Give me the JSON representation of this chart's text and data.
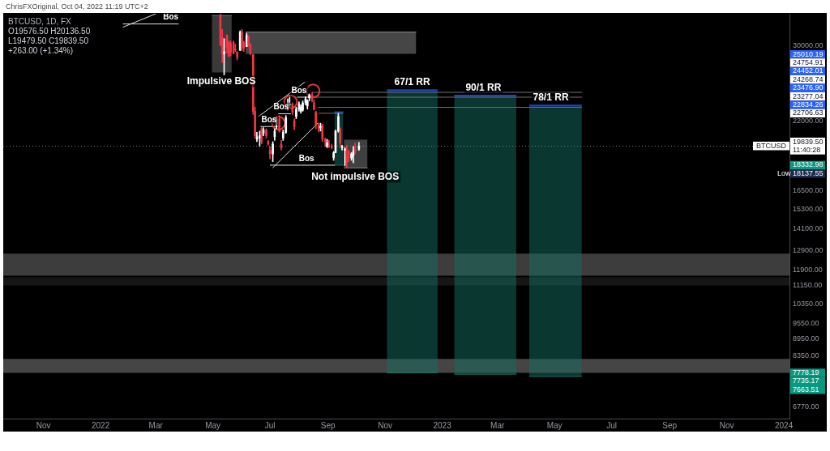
{
  "chart_data": {
    "type": "candlestick",
    "title": "BTCUSD, 1D, FX",
    "subtitle": "O19576.50 H20136.50 L19479.50 C19839.50 +263.00 (+1.34%)",
    "x": [
      "2022-05-09",
      "2022-05-11",
      "2022-05-13",
      "2022-05-16",
      "2022-05-18",
      "2022-05-20",
      "2022-05-23",
      "2022-05-25",
      "2022-05-27",
      "2022-05-30",
      "2022-06-01",
      "2022-06-03",
      "2022-06-06",
      "2022-06-08",
      "2022-06-10",
      "2022-06-13",
      "2022-06-15",
      "2022-06-17",
      "2022-06-20",
      "2022-06-22",
      "2022-06-24",
      "2022-06-27",
      "2022-06-29",
      "2022-07-01",
      "2022-07-04",
      "2022-07-06",
      "2022-07-08",
      "2022-07-11",
      "2022-07-13",
      "2022-07-15",
      "2022-07-18",
      "2022-07-20",
      "2022-07-22",
      "2022-07-25",
      "2022-07-27",
      "2022-07-29",
      "2022-08-01",
      "2022-08-03",
      "2022-08-05",
      "2022-08-08",
      "2022-08-10",
      "2022-08-12",
      "2022-08-15",
      "2022-08-17",
      "2022-08-19",
      "2022-08-22",
      "2022-08-24",
      "2022-08-26",
      "2022-08-29",
      "2022-08-31",
      "2022-09-02",
      "2022-09-05",
      "2022-09-07",
      "2022-09-09",
      "2022-09-12",
      "2022-09-14",
      "2022-09-16",
      "2022-09-19",
      "2022-09-21",
      "2022-09-23",
      "2022-09-26",
      "2022-09-28",
      "2022-09-30",
      "2022-10-04"
    ],
    "ohlc": [
      [
        34000,
        34200,
        30000,
        30100
      ],
      [
        31000,
        32100,
        28000,
        29000
      ],
      [
        29000,
        30900,
        26600,
        29300
      ],
      [
        31300,
        31400,
        29100,
        29800
      ],
      [
        30400,
        30600,
        28700,
        28700
      ],
      [
        30300,
        30600,
        28800,
        29200
      ],
      [
        30400,
        30600,
        29000,
        29100
      ],
      [
        29600,
        30200,
        29300,
        29500
      ],
      [
        29200,
        29300,
        28300,
        28600
      ],
      [
        29500,
        31900,
        29400,
        31700
      ],
      [
        31800,
        32100,
        29400,
        29800
      ],
      [
        30400,
        30600,
        29300,
        29700
      ],
      [
        29900,
        31600,
        29900,
        31300
      ],
      [
        31100,
        31300,
        29900,
        30200
      ],
      [
        30100,
        30300,
        28900,
        29100
      ],
      [
        28900,
        29000,
        22600,
        22900
      ],
      [
        22900,
        23300,
        20500,
        20700
      ],
      [
        20400,
        21000,
        20200,
        20600
      ],
      [
        20500,
        21100,
        19800,
        20700
      ],
      [
        21300,
        21400,
        20000,
        20200
      ],
      [
        20900,
        21400,
        20700,
        21200
      ],
      [
        21200,
        21300,
        20500,
        20700
      ],
      [
        20200,
        20300,
        19900,
        20000
      ],
      [
        19500,
        19800,
        18800,
        19200
      ],
      [
        19200,
        20200,
        18600,
        20000
      ],
      [
        20600,
        21300,
        20300,
        21100
      ],
      [
        21700,
        22400,
        21300,
        22200
      ],
      [
        22200,
        22500,
        21000,
        21100
      ],
      [
        20000,
        20300,
        19500,
        19700
      ],
      [
        20500,
        21200,
        20300,
        21000
      ],
      [
        21000,
        22500,
        20900,
        22300
      ],
      [
        23400,
        24100,
        23000,
        23700
      ],
      [
        23500,
        24270,
        23300,
        23600
      ],
      [
        23600,
        23700,
        22600,
        22800
      ],
      [
        22000,
        22200,
        21200,
        21500
      ],
      [
        22400,
        23300,
        22200,
        23100
      ],
      [
        23100,
        23800,
        22900,
        23600
      ],
      [
        22900,
        23500,
        22700,
        23300
      ],
      [
        23000,
        23900,
        22900,
        23700
      ],
      [
        23700,
        24300,
        23500,
        24100
      ],
      [
        23400,
        24000,
        23100,
        23900
      ],
      [
        24200,
        24600,
        23900,
        24500
      ],
      [
        24500,
        24750,
        23800,
        24000
      ],
      [
        23700,
        24000,
        23000,
        23100
      ],
      [
        22800,
        22900,
        21300,
        21600
      ],
      [
        21600,
        21800,
        21000,
        21300
      ],
      [
        21400,
        21800,
        21100,
        21500
      ],
      [
        21600,
        21700,
        20200,
        20400
      ],
      [
        20400,
        20500,
        19800,
        20200
      ],
      [
        19800,
        20400,
        19700,
        20100
      ],
      [
        19900,
        20300,
        19700,
        19800
      ],
      [
        19800,
        20000,
        19600,
        19700
      ],
      [
        18900,
        19400,
        18700,
        19300
      ],
      [
        19300,
        21200,
        19300,
        21100
      ],
      [
        21100,
        22700,
        21000,
        22400
      ],
      [
        21200,
        21400,
        19700,
        20100
      ],
      [
        19700,
        19900,
        19500,
        19800
      ],
      [
        19500,
        19700,
        18300,
        19600
      ],
      [
        18900,
        19900,
        18137.55,
        18500
      ],
      [
        19400,
        19500,
        18600,
        18900
      ],
      [
        18900,
        19300,
        18700,
        19200
      ],
      [
        19100,
        19800,
        18500,
        19400
      ],
      [
        19500,
        20100,
        19200,
        19400
      ],
      [
        19576.5,
        20136.5,
        19479.5,
        19839.5
      ]
    ],
    "colors": [
      "#f23645",
      "#f23645",
      "#ffffff",
      "#f23645",
      "#f23645",
      "#f23645",
      "#f23645",
      "#f23645",
      "#f23645",
      "#ffffff",
      "#f23645",
      "#f23645",
      "#ffffff",
      "#f23645",
      "#f23645",
      "#f23645",
      "#f23645",
      "#ffffff",
      "#ffffff",
      "#f23645",
      "#ffffff",
      "#f23645",
      "#f23645",
      "#f23645",
      "#ffffff",
      "#ffffff",
      "#ffffff",
      "#f23645",
      "#f23645",
      "#ffffff",
      "#ffffff",
      "#ffffff",
      "#ffffff",
      "#f23645",
      "#f23645",
      "#ffffff",
      "#ffffff",
      "#ffffff",
      "#ffffff",
      "#ffffff",
      "#ffffff",
      "#ffffff",
      "#f23645",
      "#f23645",
      "#f23645",
      "#f23645",
      "#ffffff",
      "#f23645",
      "#f23645",
      "#ffffff",
      "#f23645",
      "#f23645",
      "#ffffff",
      "#ffffff",
      "#ffffff",
      "#f23645",
      "#ffffff",
      "#ffffff",
      "#f23645",
      "#f23645",
      "#ffffff",
      "#ffffff",
      "#f23645",
      "#ffffff"
    ],
    "series": [
      {
        "type": "line",
        "color": "#747474",
        "x": [
          "2022-04-30",
          "2022-05-21"
        ],
        "values": [
          34000,
          34000
        ],
        "lower": [
          26870,
          26870
        ],
        "upper": [
          34000,
          34000
        ]
      },
      {
        "type": "line",
        "color": "#8c8c8c",
        "x": [
          "2022-06-05",
          "2022-12-04"
        ],
        "values": [
          31750,
          31750
        ],
        "lower": [
          29010,
          29010
        ],
        "upper": [
          31750,
          31750
        ]
      },
      {
        "type": "line",
        "color": "#808080",
        "x": [
          "2022-09-18",
          "2022-10-13"
        ],
        "values": [
          18120,
          18120
        ],
        "lower": [
          18120,
          18120
        ],
        "upper": [
          20360,
          20360
        ]
      },
      {
        "type": "line",
        "color": "#14705f",
        "x": [
          "2022-11-03",
          "2022-12-27"
        ],
        "values": [
          7778.19,
          7778.19
        ],
        "lower": [
          7778.19,
          7778.19
        ],
        "upper": [
          24754.91,
          24754.91
        ]
      },
      {
        "type": "line",
        "color": "#2962ff",
        "x": [
          "2022-11-03",
          "2022-12-27"
        ],
        "values": [
          25010.19,
          25010.19
        ],
        "lower": [
          24754.91,
          24754.91
        ],
        "upper": [
          25010.19,
          25010.19
        ]
      },
      {
        "type": "line",
        "color": "#14705f",
        "x": [
          "2023-01-14",
          "2023-03-21"
        ],
        "values": [
          7735.17,
          7735.17
        ],
        "lower": [
          7735.17,
          7735.17
        ],
        "upper": [
          24268.74,
          24268.74
        ]
      },
      {
        "type": "line",
        "color": "#2962ff",
        "x": [
          "2023-01-14",
          "2023-03-21"
        ],
        "values": [
          24452.01,
          24452.01
        ],
        "lower": [
          24268.74,
          24268.74
        ],
        "upper": [
          24452.01,
          24452.01
        ]
      },
      {
        "type": "line",
        "color": "#14705f",
        "x": [
          "2023-04-04",
          "2023-05-30"
        ],
        "values": [
          7663.51,
          7663.51
        ],
        "lower": [
          7663.51,
          7663.51
        ],
        "upper": [
          23277.04,
          23277.04
        ]
      },
      {
        "type": "line",
        "color": "#2962ff",
        "x": [
          "2023-04-04",
          "2023-05-30"
        ],
        "values": [
          23476.9,
          23476.9
        ],
        "lower": [
          23277.04,
          23277.04
        ],
        "upper": [
          23476.9,
          23476.9
        ]
      },
      {
        "type": "line",
        "color": "#14705f",
        "x": [
          "2022-09-08",
          "2022-09-17"
        ],
        "values": [
          18332.98,
          18332.98
        ],
        "lower": [
          18332.98,
          18332.98
        ],
        "upper": [
          22706.63,
          22706.63
        ]
      },
      {
        "type": "line",
        "color": "#2962ff",
        "x": [
          "2022-09-08",
          "2022-09-17"
        ],
        "values": [
          22834.26,
          22834.26
        ],
        "lower": [
          22706.63,
          22706.63
        ],
        "upper": [
          22834.26,
          22834.26
        ]
      },
      {
        "type": "line",
        "color": "#6f6f6f",
        "x": [
          "2022-08-15",
          "2023-05-30"
        ],
        "values": [
          24754.91,
          24754.91
        ]
      },
      {
        "type": "line",
        "color": "#6f6f6f",
        "x": [
          "2022-08-07",
          "2023-05-30"
        ],
        "values": [
          24268.74,
          24268.74
        ]
      },
      {
        "type": "line",
        "color": "#6f6f6f",
        "x": [
          "2022-08-21",
          "2023-05-30"
        ],
        "values": [
          23277.04,
          23277.04
        ]
      },
      {
        "type": "line",
        "color": "#6f6f6f",
        "x": [
          "2022-08-22",
          "2022-09-17"
        ],
        "values": [
          22706.63,
          22706.63
        ]
      },
      {
        "type": "line",
        "color": "#e0e0e0",
        "x": [
          "2022-06-19",
          "2022-08-07"
        ],
        "values": [
          22430,
          25810
        ]
      },
      {
        "type": "line",
        "color": "#e0e0e0",
        "x": [
          "2022-07-04",
          "2022-08-21"
        ],
        "values": [
          18140,
          21790
        ]
      },
      {
        "type": "line",
        "color": "#e0e0e0",
        "x": [
          "2022-06-21",
          "2022-07-09"
        ],
        "values": [
          21500,
          21500
        ]
      },
      {
        "type": "line",
        "color": "#e0e0e0",
        "x": [
          "2022-07-10",
          "2022-07-23"
        ],
        "values": [
          22660,
          22660
        ]
      },
      {
        "type": "line",
        "color": "#e0e0e0",
        "x": [
          "2022-07-30",
          "2022-08-13"
        ],
        "values": [
          24270,
          24270
        ]
      },
      {
        "type": "line",
        "color": "#e0e0e0",
        "x": [
          "2022-07-01",
          "2022-09-08"
        ],
        "values": [
          18330,
          18330
        ]
      },
      {
        "type": "line",
        "color": "#e0e0e0",
        "x": [
          "2022-01-25",
          "2022-03-25"
        ],
        "values": [
          32830,
          32830
        ]
      },
      {
        "type": "line",
        "color": "#e0e0e0",
        "x": [
          "2022-01-25",
          "2022-03-01"
        ],
        "values": [
          32400,
          34240
        ]
      },
      {
        "type": "scatter",
        "marker": "circle",
        "color": "#e53935",
        "x": [
          "2022-07-10",
          "2022-07-23",
          "2022-08-16"
        ],
        "values": [
          21800,
          23800,
          24900
        ]
      }
    ],
    "bands": [
      {
        "axis": "y",
        "from": 11620,
        "to": 12720,
        "color": "#3d3d3d"
      },
      {
        "axis": "y",
        "from": 11160,
        "to": 11540,
        "color": "#161616"
      },
      {
        "axis": "y",
        "from": 7780,
        "to": 8240,
        "color": "#454545"
      }
    ],
    "ref_lines": [
      {
        "axis": "y",
        "value": 19839.5,
        "label": "19839.50",
        "line_style": "dotted",
        "color": "#787b86"
      }
    ],
    "annotations": [
      "ChrisFXOriginal, Oct 04, 2022 11:19 UTC+2",
      {
        "text": "BTCUSD",
        "y": 19839.5
      },
      {
        "text": "11:40:28",
        "y": 19839.5
      },
      "25010.19",
      "24754.91",
      "24452.01",
      "24268.74",
      "23476.90",
      "23277.04",
      "22834.26",
      "22706.63",
      "18332.98",
      "Low 18137.55",
      "7778.19",
      "7735.17",
      "7663.51",
      {
        "text": "Impulsive BOS",
        "x": "2022-05-10",
        "y": 26870
      },
      {
        "text": "Not impulsive BOS",
        "x": "2022-09-30",
        "y": 18120
      },
      {
        "text": "Bos",
        "x": "2022-03-17",
        "y": 32830
      },
      {
        "text": "Bos",
        "x": "2022-06-30",
        "y": 21500
      },
      {
        "text": "Bos",
        "x": "2022-07-13",
        "y": 22660
      },
      {
        "text": "Bos",
        "x": "2022-08-01",
        "y": 24270
      },
      {
        "text": "Bos",
        "x": "2022-08-09",
        "y": 18330
      },
      {
        "text": "67/1 RR",
        "x": "2022-11-30",
        "y": 25010.19
      },
      {
        "text": "90/1 RR",
        "x": "2023-02-14",
        "y": 24452.01
      },
      {
        "text": "78/1 RR",
        "x": "2023-04-27",
        "y": 23476.9
      }
    ],
    "xlim": [
      "2021-09-19",
      "2024-01-07"
    ],
    "xticks": [
      {
        "value": "2021-11-01",
        "label": "Nov"
      },
      {
        "value": "2022-01-01",
        "label": "2022"
      },
      {
        "value": "2022-03-01",
        "label": "Mar"
      },
      {
        "value": "2022-05-01",
        "label": "May"
      },
      {
        "value": "2022-07-01",
        "label": "Jul"
      },
      {
        "value": "2022-09-01",
        "label": "Sep"
      },
      {
        "value": "2022-11-01",
        "label": "Nov"
      },
      {
        "value": "2023-01-01",
        "label": "2023"
      },
      {
        "value": "2023-03-01",
        "label": "Mar"
      },
      {
        "value": "2023-05-01",
        "label": "May"
      },
      {
        "value": "2023-07-01",
        "label": "Jul"
      },
      {
        "value": "2023-09-01",
        "label": "Sep"
      },
      {
        "value": "2023-11-01",
        "label": "Nov"
      },
      {
        "value": "2024-01-01",
        "label": "2024"
      }
    ],
    "ylim": [
      6440,
      34240
    ],
    "yticks": [
      {
        "value": 30000,
        "label": "30000.00"
      },
      {
        "value": 22000,
        "label": "22000.00"
      },
      {
        "value": 16500,
        "label": "16500.00"
      },
      {
        "value": 15300,
        "label": "15300.00"
      },
      {
        "value": 14100,
        "label": "14100.00"
      },
      {
        "value": 12900,
        "label": "12900.00"
      },
      {
        "value": 11900,
        "label": "11900.00"
      },
      {
        "value": 11150,
        "label": "11150.00"
      },
      {
        "value": 10350,
        "label": "10350.00"
      },
      {
        "value": 9550,
        "label": "9550.00"
      },
      {
        "value": 8950,
        "label": "8950.00"
      },
      {
        "value": 8350,
        "label": "8350.00"
      },
      {
        "value": 6770,
        "label": "6770.00"
      }
    ],
    "log": "y"
  }
}
